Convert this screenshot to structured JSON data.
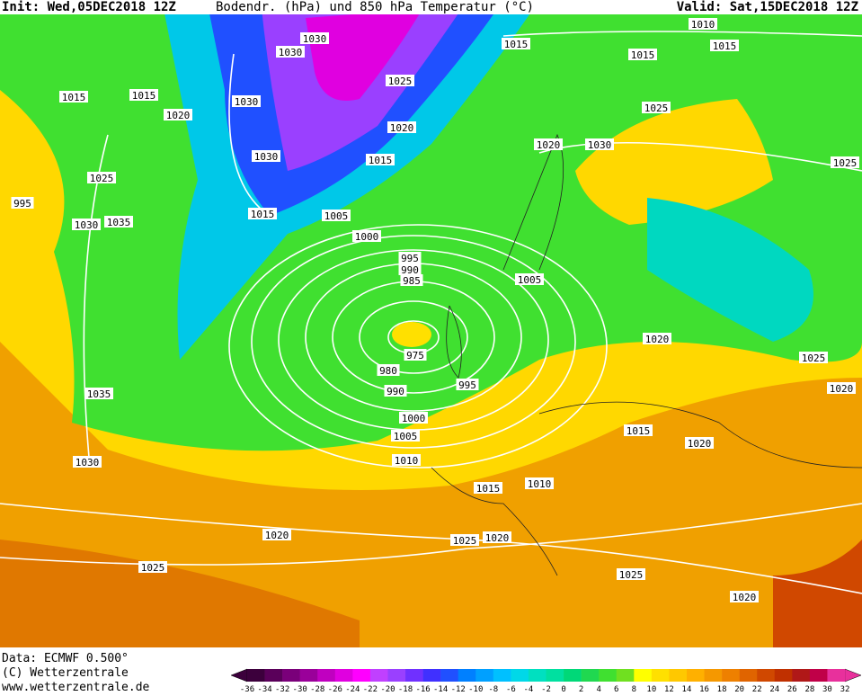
{
  "header": {
    "init": "Init: Wed,05DEC2018 12Z",
    "title": "Bodendr. (hPa)  und 850 hPa Temperatur (°C)",
    "valid": "Valid: Sat,15DEC2018 12Z"
  },
  "footer": {
    "data_source": "Data: ECMWF   0.500°",
    "copyright": "(C) Wetterzentrale",
    "website": "www.wetterzentrale.de"
  },
  "colorbar": {
    "ticks": [
      -36,
      -34,
      -32,
      -30,
      -28,
      -26,
      -24,
      -22,
      -20,
      -18,
      -16,
      -14,
      -12,
      -10,
      -8,
      -6,
      -4,
      -2,
      0,
      2,
      4,
      6,
      8,
      10,
      12,
      14,
      16,
      18,
      20,
      22,
      24,
      26,
      28,
      30,
      32
    ],
    "colors": [
      "#3c003c",
      "#5a005a",
      "#7a007a",
      "#9a009a",
      "#c000c0",
      "#e000e0",
      "#ff00ff",
      "#c040ff",
      "#9a40ff",
      "#7030ff",
      "#4030ff",
      "#2050ff",
      "#0080ff",
      "#00a0ff",
      "#00c0ff",
      "#00d8e8",
      "#00e0c0",
      "#00e0a0",
      "#00d878",
      "#20d850",
      "#40e030",
      "#70e020",
      "#ffff00",
      "#ffe000",
      "#ffc800",
      "#ffb000",
      "#f59800",
      "#ee8000",
      "#e06400",
      "#d04800",
      "#c03000",
      "#b01818",
      "#c00048",
      "#e8309c"
    ]
  },
  "isobar_labels": [
    "1015",
    "1015",
    "1020",
    "1030",
    "1030",
    "1030",
    "1025",
    "1020",
    "1015",
    "1030",
    "1015",
    "1005",
    "1000",
    "995",
    "990",
    "985",
    "975",
    "980",
    "990",
    "995",
    "1000",
    "1005",
    "1010",
    "1015",
    "1010",
    "1020",
    "1025",
    "1020",
    "1025",
    "1025",
    "1020",
    "1025",
    "995",
    "1030",
    "1035",
    "1035",
    "1030",
    "1015",
    "1015",
    "1015",
    "1010",
    "1025",
    "1020",
    "1030",
    "1025",
    "1005",
    "1020",
    "1025",
    "1020",
    "1015",
    "1020"
  ]
}
